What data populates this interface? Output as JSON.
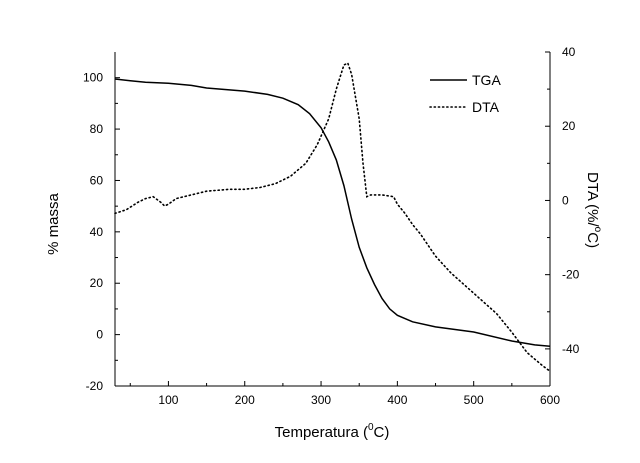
{
  "chart_data": {
    "type": "line",
    "xlabel": "Temperatura (",
    "xlabel_sup": "0",
    "xlabel_end": "C)",
    "ylabel_left": "% massa",
    "ylabel_right": "DTA (%/",
    "ylabel_right_sup": "o",
    "ylabel_right_end": "C)",
    "xlim": [
      30,
      600
    ],
    "ylim_left": [
      -20,
      110
    ],
    "ylim_right": [
      -50,
      40
    ],
    "x_ticks": [
      100,
      200,
      300,
      400,
      500,
      600
    ],
    "y_left_ticks": [
      -20,
      0,
      20,
      40,
      60,
      80,
      100
    ],
    "y_right_ticks": [
      -40,
      -20,
      0,
      20,
      40
    ],
    "x_tick_labels": [
      "100",
      "200",
      "300",
      "400",
      "500",
      "600"
    ],
    "y_left_tick_labels": [
      "-20",
      "0",
      "20",
      "40",
      "60",
      "80",
      "100"
    ],
    "y_right_tick_labels": [
      "-40",
      "-20",
      "0",
      "20",
      "40"
    ],
    "grid": false,
    "legend_position": "top-right",
    "series": [
      {
        "name": "TGA",
        "axis": "left",
        "style": "solid",
        "color": "#000000",
        "x": [
          30,
          50,
          70,
          100,
          130,
          150,
          200,
          230,
          250,
          270,
          285,
          300,
          310,
          320,
          330,
          340,
          350,
          360,
          370,
          380,
          390,
          400,
          420,
          450,
          500,
          550,
          580,
          600
        ],
        "y": [
          99.5,
          98.8,
          98.2,
          97.8,
          97,
          96,
          94.8,
          93.5,
          92,
          89.5,
          86,
          80.5,
          75,
          68,
          58,
          45,
          34,
          26,
          19.5,
          14,
          10,
          7.5,
          5,
          3,
          1,
          -2.5,
          -4,
          -4.5
        ]
      },
      {
        "name": "DTA",
        "axis": "right",
        "style": "dotted",
        "color": "#000000",
        "x": [
          30,
          45,
          60,
          70,
          80,
          90,
          95,
          100,
          110,
          130,
          150,
          180,
          200,
          220,
          240,
          260,
          280,
          295,
          310,
          320,
          330,
          335,
          340,
          350,
          355,
          360,
          365,
          380,
          395,
          400,
          410,
          420,
          430,
          440,
          450,
          470,
          500,
          530,
          550,
          570,
          590,
          600
        ],
        "y": [
          -3.5,
          -2.5,
          -0.5,
          0.5,
          1,
          -0.5,
          -1.5,
          -1,
          0.5,
          1.5,
          2.5,
          3,
          3,
          3.5,
          4.5,
          6.5,
          10,
          15,
          22,
          30,
          36.5,
          37,
          34,
          22,
          10,
          1,
          1.5,
          1.5,
          1,
          -1,
          -3.5,
          -6.5,
          -9,
          -12,
          -15,
          -19.5,
          -25,
          -30.5,
          -35.5,
          -41,
          -44.5,
          -46
        ]
      }
    ]
  }
}
